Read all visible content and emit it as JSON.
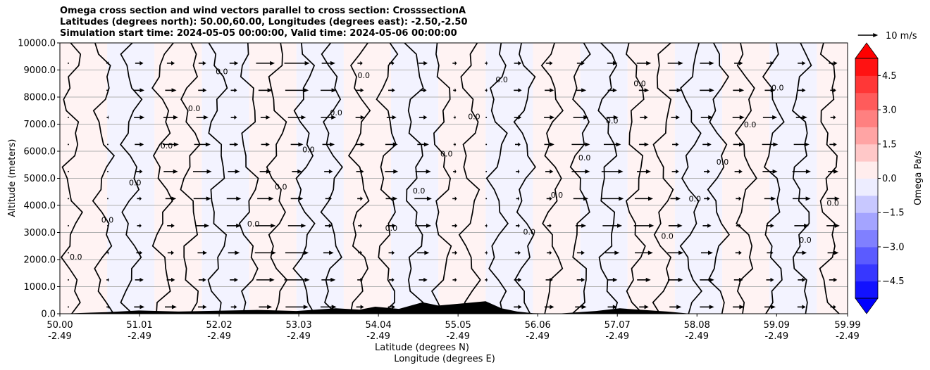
{
  "chart_data": {
    "type": "contour-section",
    "title_lines": [
      "Omega cross section and wind vectors parallel to cross section: CrosssectionA",
      "Latitudes (degrees north): 50.00,60.00, Longitudes (degrees east): -2.50,-2.50",
      "Simulation start time: 2024-05-05 00:00:00, Valid time: 2024-05-06 00:00:00"
    ],
    "ylabel": "Altitude (meters)",
    "xlabel_lines": [
      "Latitude (degrees N)",
      "Longitude (degrees E)"
    ],
    "xlim": [
      50.0,
      59.99
    ],
    "ylim": [
      0,
      10000
    ],
    "x_ticks": [
      {
        "lat": "50.00",
        "lon": "-2.49",
        "v": 50.0
      },
      {
        "lat": "51.01",
        "lon": "-2.49",
        "v": 51.01
      },
      {
        "lat": "52.02",
        "lon": "-2.49",
        "v": 52.02
      },
      {
        "lat": "53.03",
        "lon": "-2.49",
        "v": 53.03
      },
      {
        "lat": "54.04",
        "lon": "-2.49",
        "v": 54.04
      },
      {
        "lat": "55.05",
        "lon": "-2.49",
        "v": 55.05
      },
      {
        "lat": "56.06",
        "lon": "-2.49",
        "v": 56.06
      },
      {
        "lat": "57.07",
        "lon": "-2.49",
        "v": 57.07
      },
      {
        "lat": "58.08",
        "lon": "-2.49",
        "v": 58.08
      },
      {
        "lat": "59.09",
        "lon": "-2.49",
        "v": 59.09
      },
      {
        "lat": "59.99",
        "lon": "-2.49",
        "v": 59.99
      }
    ],
    "y_ticks": [
      {
        "label": "0.0",
        "v": 0
      },
      {
        "label": "1000.0",
        "v": 1000
      },
      {
        "label": "2000.0",
        "v": 2000
      },
      {
        "label": "3000.0",
        "v": 3000
      },
      {
        "label": "4000.0",
        "v": 4000
      },
      {
        "label": "5000.0",
        "v": 5000
      },
      {
        "label": "6000.0",
        "v": 6000
      },
      {
        "label": "7000.0",
        "v": 7000
      },
      {
        "label": "8000.0",
        "v": 8000
      },
      {
        "label": "9000.0",
        "v": 9000
      },
      {
        "label": "10000.0",
        "v": 10000
      }
    ],
    "grid": "horizontal",
    "colorbar": {
      "label": "Omega Pa/s",
      "range": [
        -5.25,
        5.25
      ],
      "ticks": [
        {
          "label": "4.5",
          "v": 4.5
        },
        {
          "label": "3.0",
          "v": 3.0
        },
        {
          "label": "1.5",
          "v": 1.5
        },
        {
          "label": "0.0",
          "v": 0.0
        },
        {
          "label": "−1.5",
          "v": -1.5
        },
        {
          "label": "−3.0",
          "v": -3.0
        },
        {
          "label": "−4.5",
          "v": -4.5
        }
      ],
      "extend": "both",
      "colormap": "bwr",
      "color_max": "#ff0000",
      "color_min": "#0000ff",
      "color_mid": "#ffffff"
    },
    "quiver_key": {
      "label": "10 m/s",
      "magnitude": 10
    },
    "contour_label_text": "0.0",
    "contour_x": [
      50.15,
      50.55,
      50.9,
      51.3,
      51.65,
      52.0,
      52.4,
      52.75,
      53.1,
      53.45,
      53.8,
      54.15,
      54.5,
      54.85,
      55.2,
      55.55,
      55.9,
      56.25,
      56.6,
      56.95,
      57.3,
      57.65,
      58.0,
      58.35,
      58.7,
      59.05,
      59.4,
      59.75
    ],
    "shading": [
      {
        "x0": 50.0,
        "x1": 50.6,
        "sign": 1
      },
      {
        "x0": 50.6,
        "x1": 51.2,
        "sign": -1
      },
      {
        "x0": 51.2,
        "x1": 51.8,
        "sign": 1
      },
      {
        "x0": 51.8,
        "x1": 52.4,
        "sign": -1
      },
      {
        "x0": 52.4,
        "x1": 53.0,
        "sign": 1
      },
      {
        "x0": 53.0,
        "x1": 53.6,
        "sign": -1
      },
      {
        "x0": 53.6,
        "x1": 54.2,
        "sign": 1
      },
      {
        "x0": 54.2,
        "x1": 54.8,
        "sign": -1
      },
      {
        "x0": 54.8,
        "x1": 55.4,
        "sign": 1
      },
      {
        "x0": 55.4,
        "x1": 56.0,
        "sign": -1
      },
      {
        "x0": 56.0,
        "x1": 56.6,
        "sign": 1
      },
      {
        "x0": 56.6,
        "x1": 57.2,
        "sign": -1
      },
      {
        "x0": 57.2,
        "x1": 57.8,
        "sign": 1
      },
      {
        "x0": 57.8,
        "x1": 58.4,
        "sign": -1
      },
      {
        "x0": 58.4,
        "x1": 59.0,
        "sign": 1
      },
      {
        "x0": 59.0,
        "x1": 59.6,
        "sign": -1
      },
      {
        "x0": 59.6,
        "x1": 59.99,
        "sign": 1
      }
    ],
    "wind_columns": [
      {
        "x": 50.0,
        "u": 0.5
      },
      {
        "x": 50.5,
        "u": 1.0
      },
      {
        "x": 50.9,
        "u": 4.0
      },
      {
        "x": 51.3,
        "u": 6.0
      },
      {
        "x": 51.7,
        "u": 7.0
      },
      {
        "x": 52.1,
        "u": 5.5
      },
      {
        "x": 52.5,
        "u": 8.0
      },
      {
        "x": 52.9,
        "u": 9.5
      },
      {
        "x": 53.3,
        "u": 6.0
      },
      {
        "x": 53.7,
        "u": 3.5
      },
      {
        "x": 54.1,
        "u": 5.0
      },
      {
        "x": 54.5,
        "u": 6.5
      },
      {
        "x": 54.9,
        "u": 2.0
      },
      {
        "x": 55.3,
        "u": 1.0
      },
      {
        "x": 55.7,
        "u": 3.0
      },
      {
        "x": 56.1,
        "u": 4.0
      },
      {
        "x": 56.5,
        "u": 7.0
      },
      {
        "x": 56.9,
        "u": 8.5
      },
      {
        "x": 57.3,
        "u": 7.5
      },
      {
        "x": 57.7,
        "u": 6.0
      },
      {
        "x": 58.1,
        "u": 5.5
      },
      {
        "x": 58.5,
        "u": 4.5
      },
      {
        "x": 58.9,
        "u": 6.0
      },
      {
        "x": 59.3,
        "u": 7.0
      },
      {
        "x": 59.7,
        "u": 5.0
      }
    ],
    "wind_levels": [
      250,
      1250,
      2250,
      3250,
      4250,
      5250,
      6250,
      7250,
      8250,
      9250
    ],
    "terrain": [
      {
        "x": 50.0,
        "h": 0
      },
      {
        "x": 50.6,
        "h": 60
      },
      {
        "x": 51.0,
        "h": 120
      },
      {
        "x": 51.5,
        "h": 80
      },
      {
        "x": 52.0,
        "h": 110
      },
      {
        "x": 52.5,
        "h": 140
      },
      {
        "x": 53.0,
        "h": 100
      },
      {
        "x": 53.5,
        "h": 200
      },
      {
        "x": 53.8,
        "h": 150
      },
      {
        "x": 54.0,
        "h": 260
      },
      {
        "x": 54.3,
        "h": 180
      },
      {
        "x": 54.6,
        "h": 420
      },
      {
        "x": 54.8,
        "h": 300
      },
      {
        "x": 55.1,
        "h": 380
      },
      {
        "x": 55.4,
        "h": 460
      },
      {
        "x": 55.6,
        "h": 200
      },
      {
        "x": 55.8,
        "h": 80
      },
      {
        "x": 56.0,
        "h": 20
      },
      {
        "x": 56.3,
        "h": 0
      },
      {
        "x": 56.8,
        "h": 100
      },
      {
        "x": 57.1,
        "h": 200
      },
      {
        "x": 57.4,
        "h": 140
      },
      {
        "x": 57.7,
        "h": 80
      },
      {
        "x": 58.0,
        "h": 0
      },
      {
        "x": 59.99,
        "h": 0
      }
    ]
  }
}
